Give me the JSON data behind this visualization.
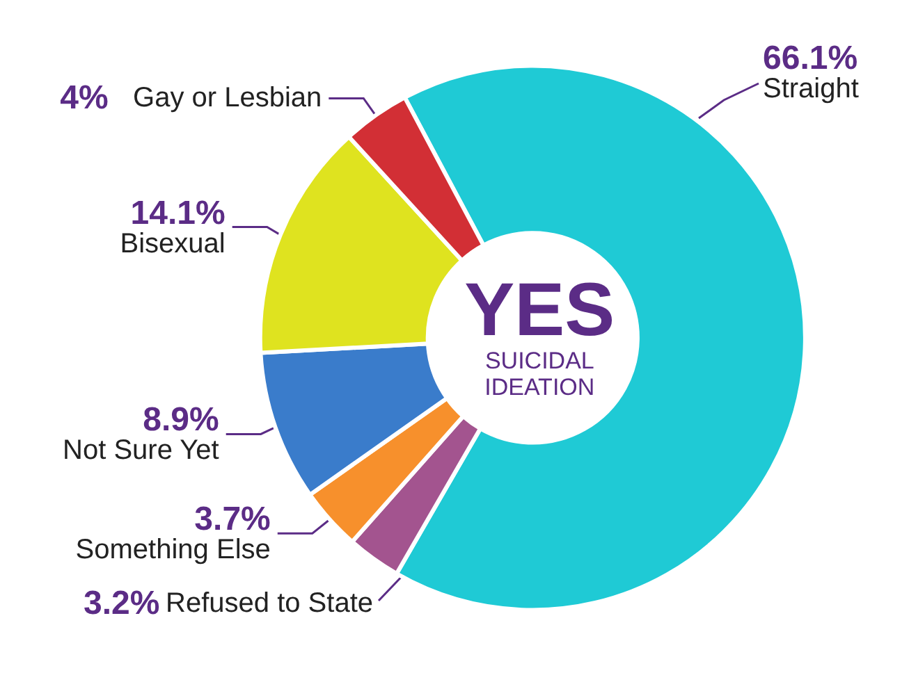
{
  "chart_data": {
    "type": "donut",
    "title": "YES",
    "subtitle": "SUICIDAL IDEATION",
    "categories": [
      "Straight",
      "Refused to State",
      "Something Else",
      "Not Sure Yet",
      "Bisexual",
      "Gay or Lesbian"
    ],
    "values": [
      66.1,
      3.2,
      3.7,
      8.9,
      14.1,
      4
    ],
    "colors": [
      "#1fcad5",
      "#a3548f",
      "#f7902c",
      "#3a7ccb",
      "#dfe31f",
      "#d22f35"
    ],
    "value_labels": [
      "66.1%",
      "3.2%",
      "3.7%",
      "8.9%",
      "14.1%",
      "4%"
    ]
  }
}
